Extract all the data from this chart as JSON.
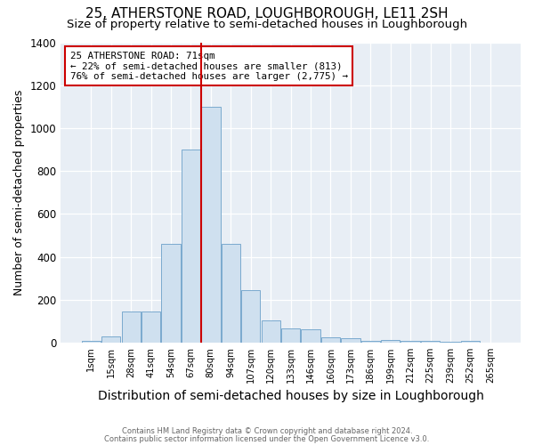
{
  "title": "25, ATHERSTONE ROAD, LOUGHBOROUGH, LE11 2SH",
  "subtitle": "Size of property relative to semi-detached houses in Loughborough",
  "xlabel": "Distribution of semi-detached houses by size in Loughborough",
  "ylabel": "Number of semi-detached properties",
  "footnote1": "Contains HM Land Registry data © Crown copyright and database right 2024.",
  "footnote2": "Contains public sector information licensed under the Open Government Licence v3.0.",
  "annotation_line1": "25 ATHERSTONE ROAD: 71sqm",
  "annotation_line2": "← 22% of semi-detached houses are smaller (813)",
  "annotation_line3": "76% of semi-detached houses are larger (2,775) →",
  "bar_labels": [
    "1sqm",
    "15sqm",
    "28sqm",
    "41sqm",
    "54sqm",
    "67sqm",
    "80sqm",
    "94sqm",
    "107sqm",
    "120sqm",
    "133sqm",
    "146sqm",
    "160sqm",
    "173sqm",
    "186sqm",
    "199sqm",
    "212sqm",
    "225sqm",
    "239sqm",
    "252sqm",
    "265sqm"
  ],
  "bar_values": [
    10,
    30,
    145,
    145,
    460,
    900,
    1100,
    460,
    245,
    105,
    68,
    60,
    25,
    20,
    8,
    12,
    8,
    8,
    5,
    8,
    0
  ],
  "bar_color": "#cfe0ef",
  "bar_edge_color": "#7aaace",
  "property_line_x": 5.5,
  "property_line_color": "#cc0000",
  "annotation_box_color": "#cc0000",
  "ylim": [
    0,
    1400
  ],
  "yticks": [
    0,
    200,
    400,
    600,
    800,
    1000,
    1200,
    1400
  ],
  "plot_bg_color": "#e8eef5",
  "title_fontsize": 11,
  "subtitle_fontsize": 9.5,
  "xlabel_fontsize": 10,
  "ylabel_fontsize": 9
}
